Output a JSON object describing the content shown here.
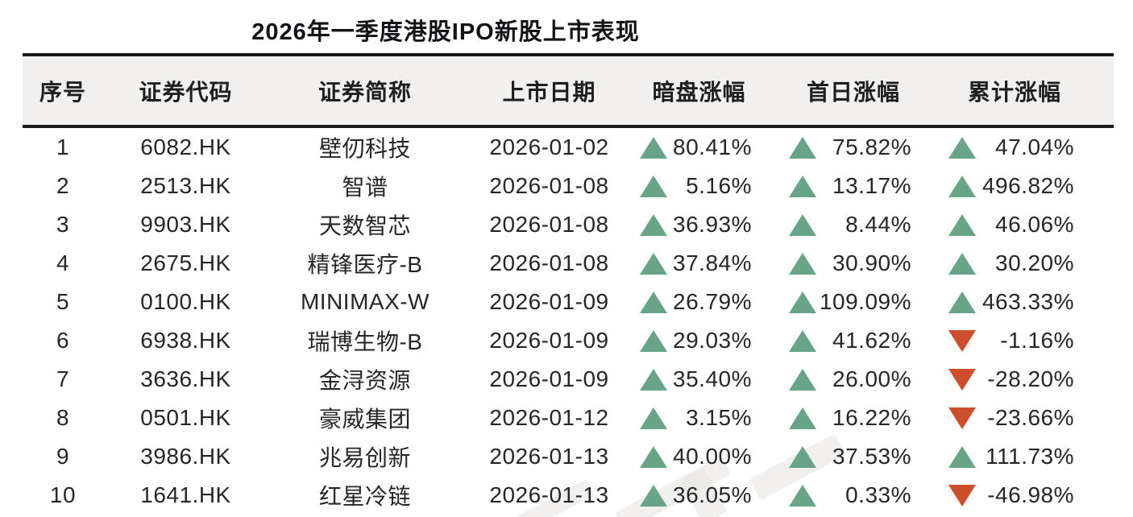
{
  "title": "2026年一季度港股IPO新股上市表现",
  "table": {
    "headers": [
      "序号",
      "证券代码",
      "证券简称",
      "上市日期",
      "暗盘涨幅",
      "首日涨幅",
      "累计涨幅"
    ],
    "rows": [
      {
        "no": "1",
        "code": "6082.HK",
        "name": "壁仞科技",
        "date": "2026-01-02",
        "dark_pool": "80.41%",
        "first_day": "75.82%",
        "cumulative": "47.04%"
      },
      {
        "no": "2",
        "code": "2513.HK",
        "name": "智谱",
        "date": "2026-01-08",
        "dark_pool": "5.16%",
        "first_day": "13.17%",
        "cumulative": "496.82%"
      },
      {
        "no": "3",
        "code": "9903.HK",
        "name": "天数智芯",
        "date": "2026-01-08",
        "dark_pool": "36.93%",
        "first_day": "8.44%",
        "cumulative": "46.06%"
      },
      {
        "no": "4",
        "code": "2675.HK",
        "name": "精锋医疗-B",
        "date": "2026-01-08",
        "dark_pool": "37.84%",
        "first_day": "30.90%",
        "cumulative": "30.20%"
      },
      {
        "no": "5",
        "code": "0100.HK",
        "name": "MINIMAX-W",
        "date": "2026-01-09",
        "dark_pool": "26.79%",
        "first_day": "109.09%",
        "cumulative": "463.33%"
      },
      {
        "no": "6",
        "code": "6938.HK",
        "name": "瑞博生物-B",
        "date": "2026-01-09",
        "dark_pool": "29.03%",
        "first_day": "41.62%",
        "cumulative": "-1.16%"
      },
      {
        "no": "7",
        "code": "3636.HK",
        "name": "金浔资源",
        "date": "2026-01-09",
        "dark_pool": "35.40%",
        "first_day": "26.00%",
        "cumulative": "-28.20%"
      },
      {
        "no": "8",
        "code": "0501.HK",
        "name": "豪威集团",
        "date": "2026-01-12",
        "dark_pool": "3.15%",
        "first_day": "16.22%",
        "cumulative": "-23.66%"
      },
      {
        "no": "9",
        "code": "3986.HK",
        "name": "兆易创新",
        "date": "2026-01-13",
        "dark_pool": "40.00%",
        "first_day": "37.53%",
        "cumulative": "111.73%"
      },
      {
        "no": "10",
        "code": "1641.HK",
        "name": "红星冷链",
        "date": "2026-01-13",
        "dark_pool": "36.05%",
        "first_day": "0.33%",
        "cumulative": "-46.98%"
      }
    ]
  },
  "icons": {
    "up": "triangle-up",
    "down": "triangle-down"
  },
  "colors": {
    "up_green": "#68a489",
    "down_red": "#cd4e2b",
    "header_bg": "#f1f0ee",
    "rule_line": "#1a1a1a",
    "body_text": "#25262a"
  },
  "chart_data": {
    "type": "table",
    "title": "2026年一季度港股IPO新股上市表现",
    "columns": [
      "序号",
      "证券代码",
      "证券简称",
      "上市日期",
      "暗盘涨幅(%)",
      "首日涨幅(%)",
      "累计涨幅(%)"
    ],
    "rows": [
      [
        "1",
        "6082.HK",
        "壁仞科技",
        "2026-01-02",
        80.41,
        75.82,
        47.04
      ],
      [
        "2",
        "2513.HK",
        "智谱",
        "2026-01-08",
        5.16,
        13.17,
        496.82
      ],
      [
        "3",
        "9903.HK",
        "天数智芯",
        "2026-01-08",
        36.93,
        8.44,
        46.06
      ],
      [
        "4",
        "2675.HK",
        "精锋医疗-B",
        "2026-01-08",
        37.84,
        30.9,
        30.2
      ],
      [
        "5",
        "0100.HK",
        "MINIMAX-W",
        "2026-01-09",
        26.79,
        109.09,
        463.33
      ],
      [
        "6",
        "6938.HK",
        "瑞博生物-B",
        "2026-01-09",
        29.03,
        41.62,
        -1.16
      ],
      [
        "7",
        "3636.HK",
        "金浔资源",
        "2026-01-09",
        35.4,
        26.0,
        -28.2
      ],
      [
        "8",
        "0501.HK",
        "豪威集团",
        "2026-01-12",
        3.15,
        16.22,
        -23.66
      ],
      [
        "9",
        "3986.HK",
        "兆易创新",
        "2026-01-13",
        40.0,
        37.53,
        111.73
      ],
      [
        "10",
        "1641.HK",
        "红星冷链",
        "2026-01-13",
        36.05,
        0.33,
        -46.98
      ]
    ],
    "units": "percent",
    "notes": "up values shown with green up-triangle, negative values with red down-triangle"
  }
}
